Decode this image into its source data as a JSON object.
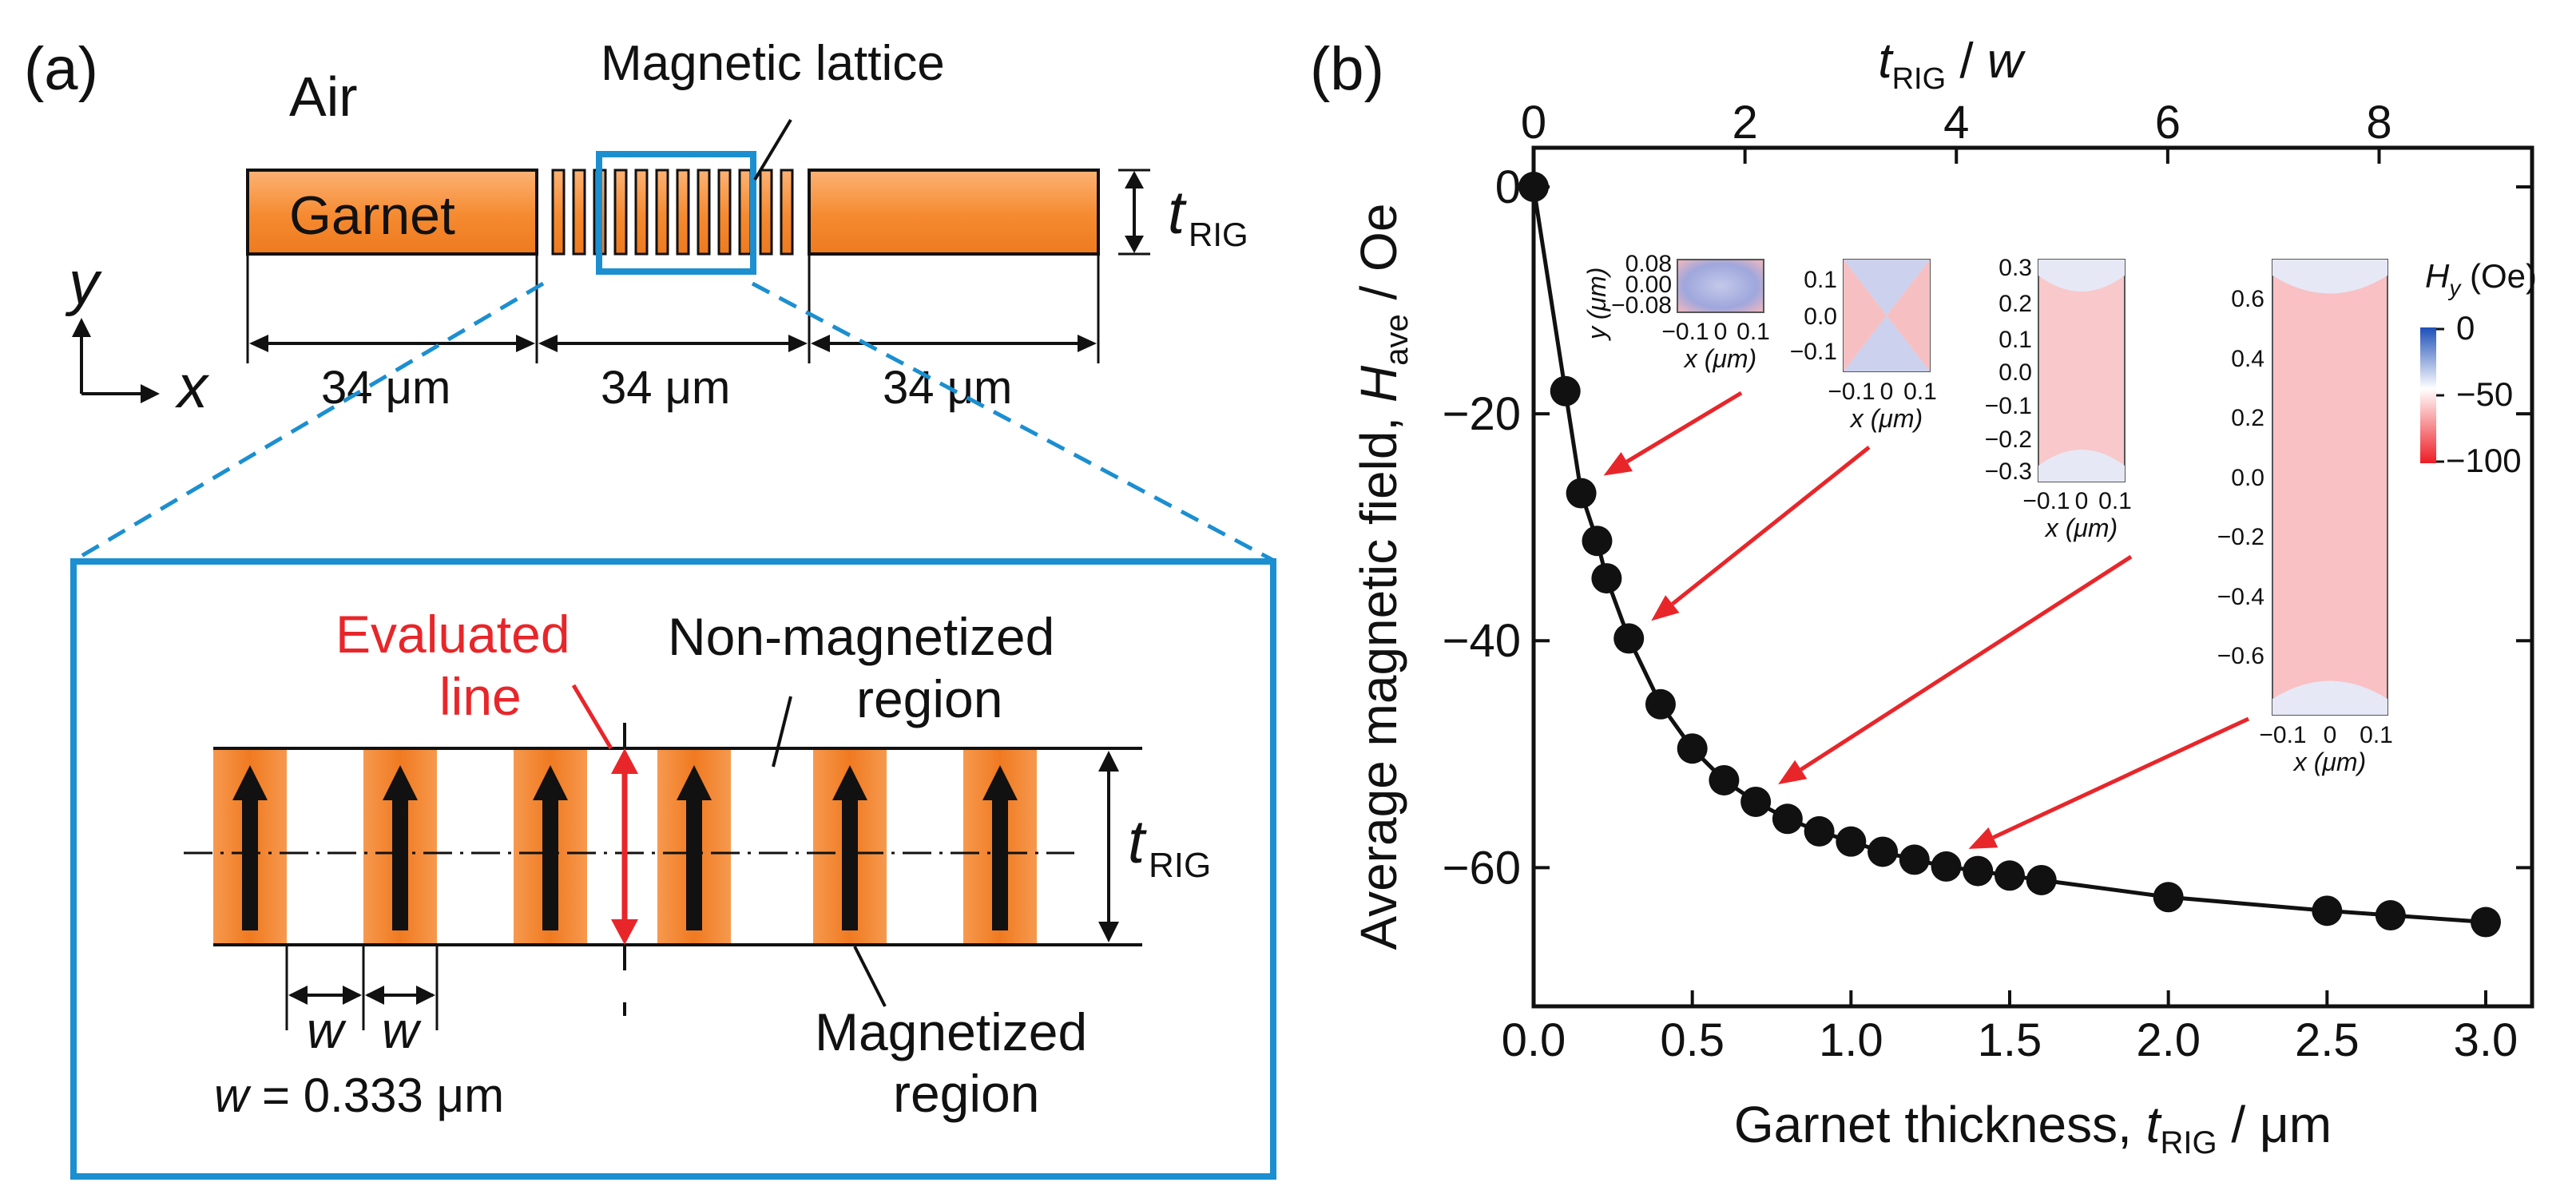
{
  "panel_a": {
    "label": "(a)",
    "air_label": "Air",
    "garnet_label": "Garnet",
    "magnetic_lattice_label": "Magnetic lattice",
    "t_label": "t",
    "t_sub": "RIG",
    "axis_y": "y",
    "axis_x": "x",
    "dims": [
      "34 μm",
      "34 μm",
      "34 μm"
    ],
    "detail": {
      "evaluated_line_1": "Evaluated",
      "evaluated_line_2": "line",
      "non_mag_1": "Non-magnetized",
      "non_mag_2": "region",
      "mag_1": "Magnetized",
      "mag_2": "region",
      "w_symbol": "w",
      "w_caption_symbol": "w",
      "w_caption_value": " = 0.333 μm"
    },
    "colors": {
      "garnet": "#f07a20",
      "garnet_light": "#fbb67a",
      "frame": "#1b8fd0",
      "red": "#e8262a"
    }
  },
  "panel_b": {
    "label": "(b)",
    "chart_data": {
      "type": "scatter",
      "title": "",
      "xlabel": "Garnet thickness, t_RIG / μm",
      "xlabel_parts": [
        "Garnet thickness, ",
        "t",
        "RIG",
        " / μm"
      ],
      "ylabel": "Average magnetic field, H_ave / Oe",
      "ylabel_parts": [
        "Average magnetic field, ",
        "H",
        "ave",
        " / Oe"
      ],
      "top_xlabel_parts": [
        "t",
        "RIG",
        " / ",
        "w"
      ],
      "xlim": [
        0,
        3.0
      ],
      "ylim": [
        -70,
        0
      ],
      "x_ticks": [
        "0.0",
        "0.5",
        "1.0",
        "1.5",
        "2.0",
        "2.5",
        "3.0"
      ],
      "x_tick_values": [
        0,
        0.5,
        1.0,
        1.5,
        2.0,
        2.5,
        3.0
      ],
      "y_ticks": [
        "0",
        "−20",
        "−40",
        "−60"
      ],
      "y_tick_values": [
        0,
        -20,
        -40,
        -60
      ],
      "top_x_ticks": [
        "0",
        "2",
        "4",
        "6",
        "8"
      ],
      "top_x_tick_values": [
        0,
        2,
        4,
        6,
        8
      ],
      "top_axis_scale": 0.333,
      "x": [
        0.0,
        0.1,
        0.15,
        0.2,
        0.23,
        0.3,
        0.4,
        0.5,
        0.6,
        0.7,
        0.8,
        0.9,
        1.0,
        1.1,
        1.2,
        1.3,
        1.4,
        1.5,
        1.6,
        2.0,
        2.5,
        2.7,
        3.0
      ],
      "values": [
        0,
        -18,
        -27,
        -31.2,
        -34.5,
        -39.8,
        -45.6,
        -49.5,
        -52.3,
        -54.2,
        -55.7,
        -56.8,
        -57.7,
        -58.6,
        -59.3,
        -59.9,
        -60.3,
        -60.7,
        -61.1,
        -62.6,
        -63.8,
        -64.2,
        -64.8
      ],
      "series_name": "H_ave",
      "colormap": {
        "title_sym": "H",
        "title_sub": "y",
        "title_unit": " (Oe)",
        "ticks": [
          "0",
          "−50",
          "−100"
        ]
      },
      "insets": [
        {
          "y_label": "y (μm)",
          "x_label": "x (μm)",
          "x_ticks": [
            "−0.1",
            "0",
            "0.1"
          ],
          "y_ticks": [
            "0.08",
            "0.00",
            "−0.08"
          ]
        },
        {
          "x_label": "x (μm)",
          "x_ticks": [
            "−0.1",
            "0",
            "0.1"
          ],
          "y_ticks": [
            "0.1",
            "0.0",
            "−0.1"
          ]
        },
        {
          "x_label": "x (μm)",
          "x_ticks": [
            "−0.1",
            "0",
            "0.1"
          ],
          "y_ticks": [
            "0.3",
            "0.2",
            "0.1",
            "0.0",
            "−0.1",
            "−0.2",
            "−0.3"
          ]
        },
        {
          "x_label": "x (μm)",
          "x_ticks": [
            "−0.1",
            "0",
            "0.1"
          ],
          "y_ticks": [
            "0.6",
            "0.4",
            "0.2",
            "0.0",
            "−0.2",
            "−0.4",
            "−0.6"
          ]
        }
      ],
      "inset_arrow_targets_x": [
        0.15,
        0.3,
        0.7,
        1.3
      ]
    }
  }
}
